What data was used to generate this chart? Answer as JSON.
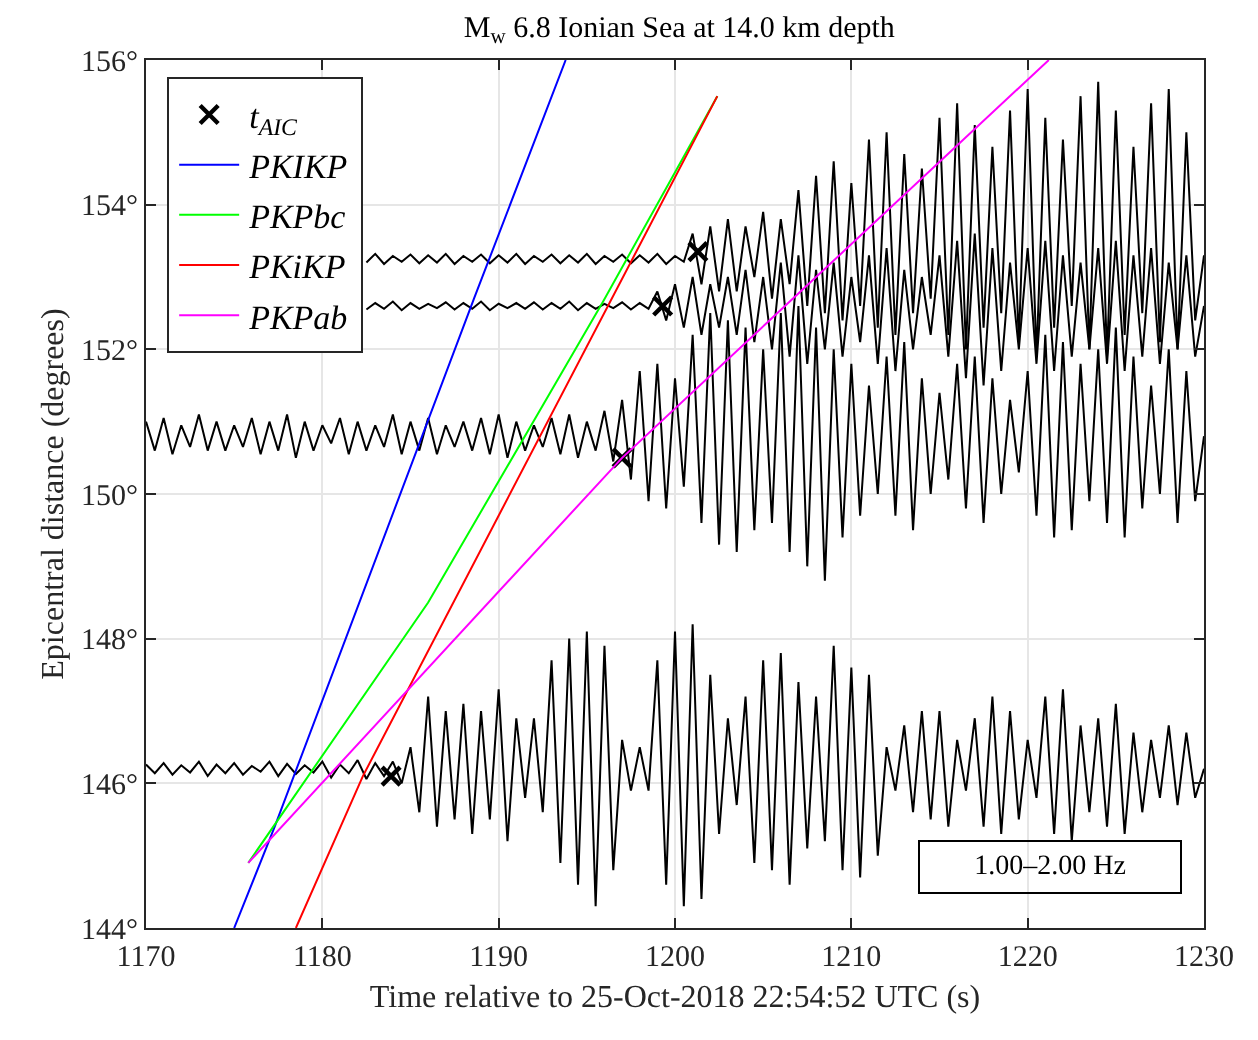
{
  "chart_data": {
    "type": "line",
    "title": "M$_{w}$ 6.8 Ionian Sea at 14.0 km depth",
    "xlabel": "Time relative to 25-Oct-2018 22:54:52 UTC (s)",
    "ylabel": "Epicentral distance (degrees)",
    "x": [
      1170,
      1170.5,
      1171,
      1171.5,
      1172,
      1172.5,
      1173,
      1173.5,
      1174,
      1174.5,
      1175,
      1175.5,
      1176,
      1176.5,
      1177,
      1177.5,
      1178,
      1178.5,
      1179,
      1179.5,
      1180,
      1180.5,
      1181,
      1181.5,
      1182,
      1182.5,
      1183,
      1183.5,
      1184,
      1184.5,
      1185,
      1185.5,
      1186,
      1186.5,
      1187,
      1187.5,
      1188,
      1188.5,
      1189,
      1189.5,
      1190,
      1190.5,
      1191,
      1191.5,
      1192,
      1192.5,
      1193,
      1193.5,
      1194,
      1194.5,
      1195,
      1195.5,
      1196,
      1196.5,
      1197,
      1197.5,
      1198,
      1198.5,
      1199,
      1199.5,
      1200,
      1200.5,
      1201,
      1201.5,
      1202,
      1202.5,
      1203,
      1203.5,
      1204,
      1204.5,
      1205,
      1205.5,
      1206,
      1206.5,
      1207,
      1207.5,
      1208,
      1208.5,
      1209,
      1209.5,
      1210,
      1210.5,
      1211,
      1211.5,
      1212,
      1212.5,
      1213,
      1213.5,
      1214,
      1214.5,
      1215,
      1215.5,
      1216,
      1216.5,
      1217,
      1217.5,
      1218,
      1218.5,
      1219,
      1219.5,
      1220,
      1220.5,
      1221,
      1221.5,
      1222,
      1222.5,
      1223,
      1223.5,
      1224,
      1224.5,
      1225,
      1225.5,
      1226,
      1226.5,
      1227,
      1227.5,
      1228,
      1228.5,
      1229,
      1229.5,
      1230
    ],
    "series": [
      {
        "color": "#000000",
        "values": [
          146.26,
          146.14,
          146.28,
          146.12,
          146.25,
          146.15,
          146.3,
          146.1,
          146.26,
          146.14,
          146.28,
          146.12,
          146.24,
          146.16,
          146.3,
          146.1,
          146.27,
          146.13,
          146.25,
          146.15,
          146.3,
          146.08,
          146.26,
          146.14,
          146.32,
          146.06,
          146.28,
          146.1,
          146.3,
          146.0,
          146.5,
          145.6,
          147.2,
          145.4,
          147.0,
          145.5,
          147.1,
          145.3,
          147.0,
          145.5,
          147.3,
          145.2,
          146.9,
          145.8,
          146.9,
          145.6,
          147.7,
          144.9,
          148.0,
          144.6,
          148.1,
          144.3,
          147.9,
          144.8,
          146.6,
          145.9,
          146.5,
          145.9,
          147.7,
          144.6,
          148.1,
          144.3,
          148.2,
          144.4,
          147.5,
          145.3,
          146.9,
          145.7,
          147.2,
          144.9,
          147.7,
          144.8,
          147.8,
          144.6,
          147.4,
          145.1,
          147.2,
          145.2,
          147.9,
          144.8,
          147.6,
          144.7,
          147.5,
          145.0,
          146.5,
          145.9,
          146.8,
          145.6,
          147.0,
          145.5,
          147.0,
          145.4,
          146.6,
          145.9,
          146.9,
          145.4,
          147.2,
          145.3,
          147.0,
          145.5,
          146.6,
          145.8,
          147.2,
          145.3,
          147.3,
          145.2,
          146.8,
          145.6,
          146.9,
          145.4,
          147.1,
          145.3,
          146.7,
          145.6,
          146.6,
          145.8,
          146.8,
          145.7,
          146.7,
          145.8,
          146.2
        ]
      },
      {
        "color": "#000000",
        "values": [
          151.0,
          150.6,
          151.05,
          150.55,
          150.95,
          150.65,
          151.1,
          150.6,
          151.0,
          150.6,
          150.95,
          150.65,
          151.05,
          150.55,
          151.0,
          150.6,
          151.1,
          150.5,
          151.0,
          150.6,
          150.95,
          150.7,
          151.05,
          150.55,
          151.0,
          150.6,
          150.95,
          150.65,
          151.1,
          150.55,
          151.0,
          150.6,
          151.05,
          150.55,
          150.95,
          150.65,
          151.0,
          150.6,
          151.05,
          150.55,
          151.1,
          150.5,
          151.0,
          150.6,
          150.95,
          150.65,
          151.05,
          150.55,
          151.1,
          150.5,
          151.0,
          150.6,
          151.15,
          150.45,
          151.3,
          150.2,
          151.7,
          149.9,
          151.8,
          149.8,
          151.6,
          150.1,
          152.2,
          149.6,
          152.5,
          149.3,
          152.4,
          149.2,
          152.3,
          149.5,
          152.0,
          149.6,
          152.5,
          149.2,
          152.6,
          149.0,
          152.3,
          148.8,
          152.0,
          149.4,
          151.8,
          149.7,
          151.5,
          150.0,
          151.9,
          149.7,
          152.1,
          149.5,
          151.6,
          150.0,
          151.4,
          150.2,
          151.8,
          149.8,
          151.9,
          149.6,
          151.6,
          150.0,
          151.3,
          150.3,
          151.7,
          149.7,
          152.2,
          149.4,
          152.1,
          149.5,
          151.8,
          149.9,
          152.0,
          149.6,
          152.3,
          149.4,
          151.9,
          149.8,
          151.5,
          150.0,
          152.0,
          149.6,
          151.7,
          149.9,
          150.8
        ]
      },
      {
        "color": "#000000",
        "values": [
          null,
          null,
          null,
          null,
          null,
          null,
          null,
          null,
          null,
          null,
          null,
          null,
          null,
          null,
          null,
          null,
          null,
          null,
          null,
          null,
          null,
          null,
          null,
          null,
          null,
          152.55,
          152.64,
          152.56,
          152.66,
          152.54,
          152.64,
          152.56,
          152.63,
          152.57,
          152.65,
          152.55,
          152.64,
          152.56,
          152.66,
          152.54,
          152.63,
          152.57,
          152.64,
          152.56,
          152.65,
          152.55,
          152.64,
          152.56,
          152.66,
          152.54,
          152.64,
          152.56,
          152.63,
          152.57,
          152.65,
          152.55,
          152.64,
          152.56,
          152.8,
          152.4,
          152.9,
          152.3,
          153.0,
          152.2,
          152.9,
          152.3,
          153.0,
          152.2,
          153.1,
          152.1,
          153.0,
          152.0,
          153.2,
          151.9,
          153.3,
          151.8,
          153.1,
          152.0,
          153.2,
          151.9,
          153.0,
          152.1,
          153.3,
          151.8,
          153.4,
          151.7,
          153.1,
          152.0,
          153.0,
          152.2,
          153.3,
          151.9,
          153.5,
          151.6,
          153.6,
          151.5,
          153.4,
          151.7,
          153.2,
          152.0,
          153.4,
          151.8,
          153.5,
          151.7,
          153.3,
          151.9,
          153.2,
          152.0,
          153.4,
          151.8,
          153.5,
          151.7,
          153.3,
          151.9,
          153.4,
          151.8,
          153.2,
          152.0,
          153.3,
          151.9,
          152.6
        ]
      },
      {
        "color": "#000000",
        "values": [
          null,
          null,
          null,
          null,
          null,
          null,
          null,
          null,
          null,
          null,
          null,
          null,
          null,
          null,
          null,
          null,
          null,
          null,
          null,
          null,
          null,
          null,
          null,
          null,
          null,
          153.2,
          153.32,
          153.18,
          153.29,
          153.21,
          153.31,
          153.19,
          153.3,
          153.2,
          153.32,
          153.18,
          153.29,
          153.21,
          153.31,
          153.19,
          153.3,
          153.2,
          153.32,
          153.18,
          153.29,
          153.21,
          153.31,
          153.19,
          153.3,
          153.2,
          153.32,
          153.18,
          153.29,
          153.21,
          153.31,
          153.19,
          153.3,
          153.2,
          153.32,
          153.18,
          153.29,
          153.21,
          153.6,
          152.9,
          153.7,
          152.8,
          153.8,
          152.8,
          153.7,
          153.0,
          153.9,
          152.7,
          153.8,
          152.9,
          154.2,
          152.6,
          154.4,
          152.5,
          154.6,
          152.4,
          154.3,
          152.6,
          154.9,
          152.3,
          155.0,
          152.2,
          154.7,
          152.5,
          154.5,
          152.7,
          155.2,
          152.2,
          155.4,
          152.0,
          155.1,
          152.3,
          154.8,
          152.5,
          155.3,
          152.1,
          155.6,
          151.9,
          155.2,
          152.3,
          154.9,
          152.6,
          155.5,
          152.0,
          155.7,
          151.9,
          155.3,
          152.2,
          154.8,
          152.5,
          155.4,
          152.1,
          155.6,
          152.0,
          155.0,
          152.4,
          153.3
        ]
      },
      {
        "type": "scatter",
        "name": "t$_{AIC}$",
        "color": "#000000",
        "marker": "cross",
        "x": [
          1183.9,
          1197.0,
          1199.3,
          1201.3
        ],
        "values": [
          146.1,
          150.5,
          152.6,
          153.35
        ]
      },
      {
        "name": "PKIKP",
        "color": "#0000ff",
        "x": [
          1175.0,
          1177.3,
          1188.6,
          1193.8
        ],
        "values": [
          144,
          145.4,
          152.7,
          156
        ]
      },
      {
        "name": "PKPbc",
        "color": "#00ff00",
        "x": [
          1175.8,
          1186.0,
          1195.9,
          1202.4
        ],
        "values": [
          144.9,
          148.5,
          152.65,
          155.5
        ]
      },
      {
        "name": "PKiKP",
        "color": "#ff0000",
        "x": [
          1178.5,
          1182.3,
          1202.4
        ],
        "values": [
          144,
          146.1,
          155.5
        ]
      },
      {
        "name": "PKPab",
        "color": "#ff00ff",
        "x": [
          1175.8,
          1197.0,
          1221.2
        ],
        "values": [
          144.9,
          150.5,
          156
        ]
      }
    ],
    "xlim": [
      1170,
      1230
    ],
    "xticks": [
      1170,
      1180,
      1190,
      1200,
      1210,
      1220,
      1230
    ],
    "ylim": [
      144,
      156
    ],
    "yticks": [
      {
        "value": 144,
        "label": "144°"
      },
      {
        "value": 146,
        "label": "146°"
      },
      {
        "value": 148,
        "label": "148°"
      },
      {
        "value": 150,
        "label": "150°"
      },
      {
        "value": 152,
        "label": "152°"
      },
      {
        "value": 154,
        "label": "154°"
      },
      {
        "value": 156,
        "label": "156°"
      }
    ],
    "annotations": [
      "1.00–2.00 Hz"
    ],
    "grid": true,
    "legend": "top left"
  }
}
